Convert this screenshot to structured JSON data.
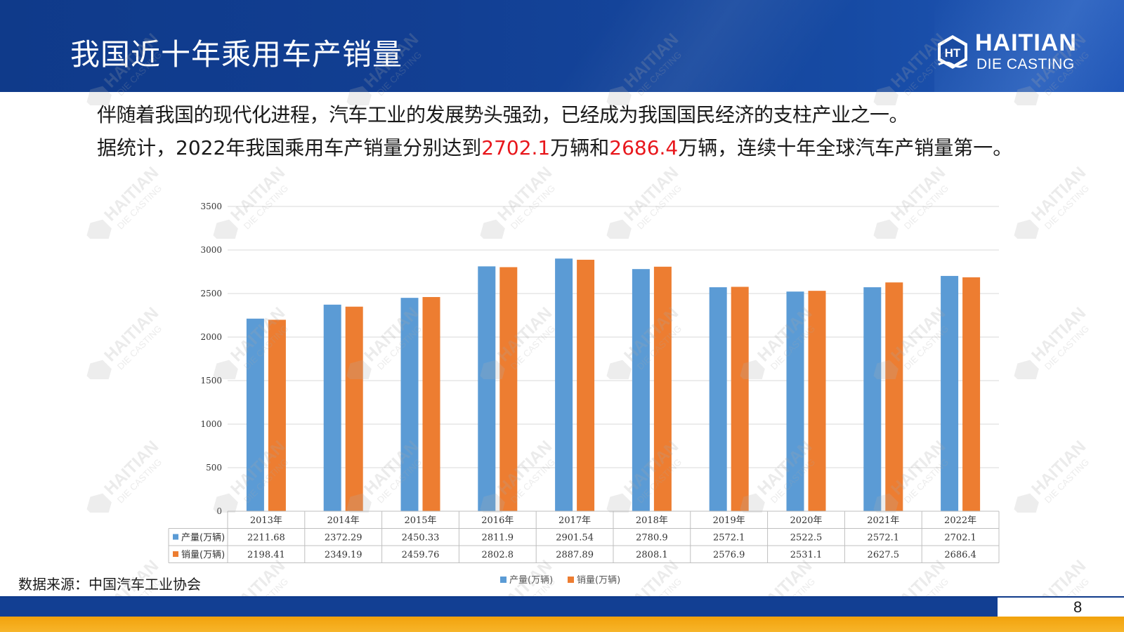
{
  "slide": {
    "title": "我国近十年乘用车产销量",
    "page_number": "8",
    "source": "数据来源：中国汽车工业协会"
  },
  "logo": {
    "name": "HAITIAN",
    "sub": "DIE CASTING",
    "mark": "HT"
  },
  "body": {
    "para1": "伴随着我国的现代化进程，汽车工业的发展势头强劲，已经成为我国国民经济的支柱产业之一。",
    "para2_prefix": "据统计，2022年我国乘用车产销量分别达到",
    "para2_value1": "2702.1",
    "para2_mid": "万辆和",
    "para2_value2": "2686.4",
    "para2_suffix": "万辆，连续十年全球汽车产销量第一。"
  },
  "watermark": {
    "text_main": "HAITIAN",
    "text_sub": "DIE CASTING"
  },
  "colors": {
    "header_blue": "#123f93",
    "series_production": "#5b9bd5",
    "series_sales": "#ed7d31",
    "highlight_red": "#e8171c",
    "footer_orange": "#f2a20c"
  },
  "chart_data": {
    "type": "bar",
    "title": "",
    "xlabel": "",
    "ylabel": "",
    "ylim": [
      0,
      3500
    ],
    "yticks": [
      0,
      500,
      1000,
      1500,
      2000,
      2500,
      3000,
      3500
    ],
    "grid": true,
    "legend_position": "bottom",
    "data_table": true,
    "categories": [
      "2013年",
      "2014年",
      "2015年",
      "2016年",
      "2017年",
      "2018年",
      "2019年",
      "2020年",
      "2021年",
      "2022年"
    ],
    "series": [
      {
        "name": "产量(万辆)",
        "color": "#5b9bd5",
        "values": [
          2211.68,
          2372.29,
          2450.33,
          2811.9,
          2901.54,
          2780.9,
          2572.1,
          2522.5,
          2572.1,
          2702.1
        ],
        "labels": [
          "2211.68",
          "2372.29",
          "2450.33",
          "2811.9",
          "2901.54",
          "2780.9",
          "2572.1",
          "2522.5",
          "2572.1",
          "2702.1"
        ]
      },
      {
        "name": "销量(万辆)",
        "color": "#ed7d31",
        "values": [
          2198.41,
          2349.19,
          2459.76,
          2802.8,
          2887.89,
          2808.1,
          2576.9,
          2531.1,
          2627.5,
          2686.4
        ],
        "labels": [
          "2198.41",
          "2349.19",
          "2459.76",
          "2802.8",
          "2887.89",
          "2808.1",
          "2576.9",
          "2531.1",
          "2627.5",
          "2686.4"
        ]
      }
    ]
  }
}
